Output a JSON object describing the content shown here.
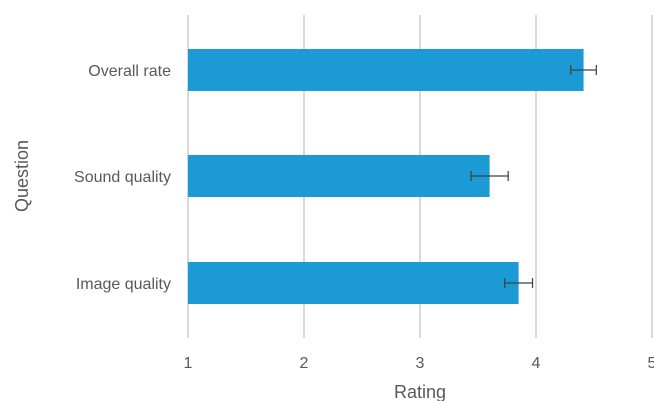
{
  "chart_data": {
    "type": "bar",
    "orientation": "horizontal",
    "categories": [
      "Overall rate",
      "Sound quality",
      "Image quality"
    ],
    "values": [
      4.41,
      3.6,
      3.85
    ],
    "error": [
      0.11,
      0.16,
      0.12
    ],
    "xlabel": "Rating",
    "ylabel": "Question",
    "xlim": [
      1,
      5
    ],
    "xticks": [
      "1",
      "2",
      "3",
      "4",
      "5"
    ],
    "grid": "vertical",
    "legend": "none",
    "colors": {
      "bar": "#1b9ad6",
      "grid": "#bfbfbf",
      "error_bar": "#404040",
      "text": "#595959"
    }
  }
}
